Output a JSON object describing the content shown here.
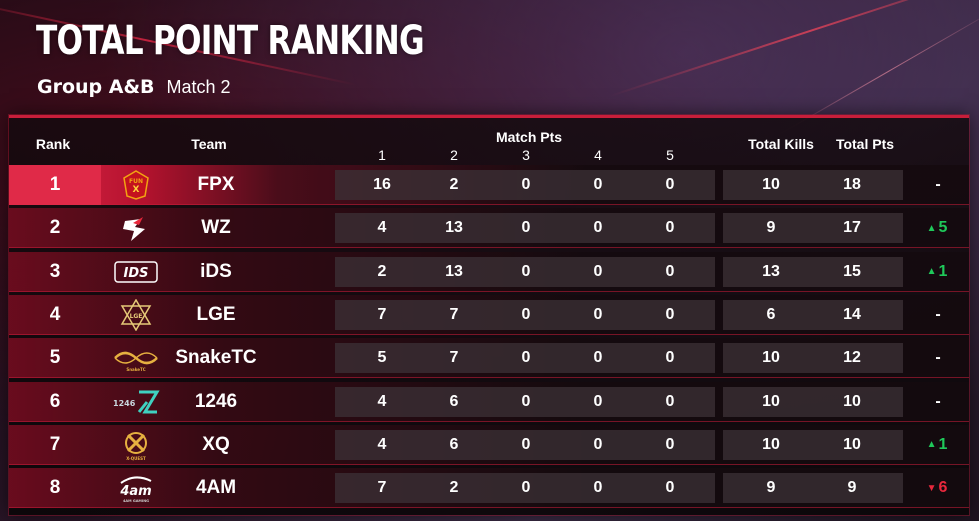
{
  "title": "TOTAL POINT RANKING",
  "subtitle": {
    "group": "Group A&B",
    "match": "Match 2"
  },
  "table": {
    "headers": {
      "rank": "Rank",
      "team": "Team",
      "match_pts": "Match Pts",
      "matches": [
        "1",
        "2",
        "3",
        "4",
        "5"
      ],
      "total_kills": "Total Kills",
      "total_pts": "Total Pts"
    },
    "rows": [
      {
        "rank": "1",
        "team": "FPX",
        "logo": "fpx-logo",
        "pts": [
          "16",
          "2",
          "0",
          "0",
          "0"
        ],
        "total_kills": "10",
        "total_pts": "18",
        "change": "-",
        "arrow": "",
        "dir": "none"
      },
      {
        "rank": "2",
        "team": "WZ",
        "logo": "wz-logo",
        "pts": [
          "4",
          "13",
          "0",
          "0",
          "0"
        ],
        "total_kills": "9",
        "total_pts": "17",
        "change": "5",
        "arrow": "▲",
        "dir": "up"
      },
      {
        "rank": "3",
        "team": "iDS",
        "logo": "ids-logo",
        "pts": [
          "2",
          "13",
          "0",
          "0",
          "0"
        ],
        "total_kills": "13",
        "total_pts": "15",
        "change": "1",
        "arrow": "▲",
        "dir": "up"
      },
      {
        "rank": "4",
        "team": "LGE",
        "logo": "lge-logo",
        "pts": [
          "7",
          "7",
          "0",
          "0",
          "0"
        ],
        "total_kills": "6",
        "total_pts": "14",
        "change": "-",
        "arrow": "",
        "dir": "none"
      },
      {
        "rank": "5",
        "team": "SnakeTC",
        "logo": "snaketc-logo",
        "pts": [
          "5",
          "7",
          "0",
          "0",
          "0"
        ],
        "total_kills": "10",
        "total_pts": "12",
        "change": "-",
        "arrow": "",
        "dir": "none"
      },
      {
        "rank": "6",
        "team": "1246",
        "logo": "1246-logo",
        "pts": [
          "4",
          "6",
          "0",
          "0",
          "0"
        ],
        "total_kills": "10",
        "total_pts": "10",
        "change": "-",
        "arrow": "",
        "dir": "none"
      },
      {
        "rank": "7",
        "team": "XQ",
        "logo": "xq-logo",
        "pts": [
          "4",
          "6",
          "0",
          "0",
          "0"
        ],
        "total_kills": "10",
        "total_pts": "10",
        "change": "1",
        "arrow": "▲",
        "dir": "up"
      },
      {
        "rank": "8",
        "team": "4AM",
        "logo": "4am-logo",
        "pts": [
          "7",
          "2",
          "0",
          "0",
          "0"
        ],
        "total_kills": "9",
        "total_pts": "9",
        "change": "6",
        "arrow": "▼",
        "dir": "down"
      }
    ]
  },
  "colors": {
    "accent": "#c81e3a",
    "first_place": "#e02a48",
    "up": "#1fc85a",
    "down": "#e8283c"
  }
}
